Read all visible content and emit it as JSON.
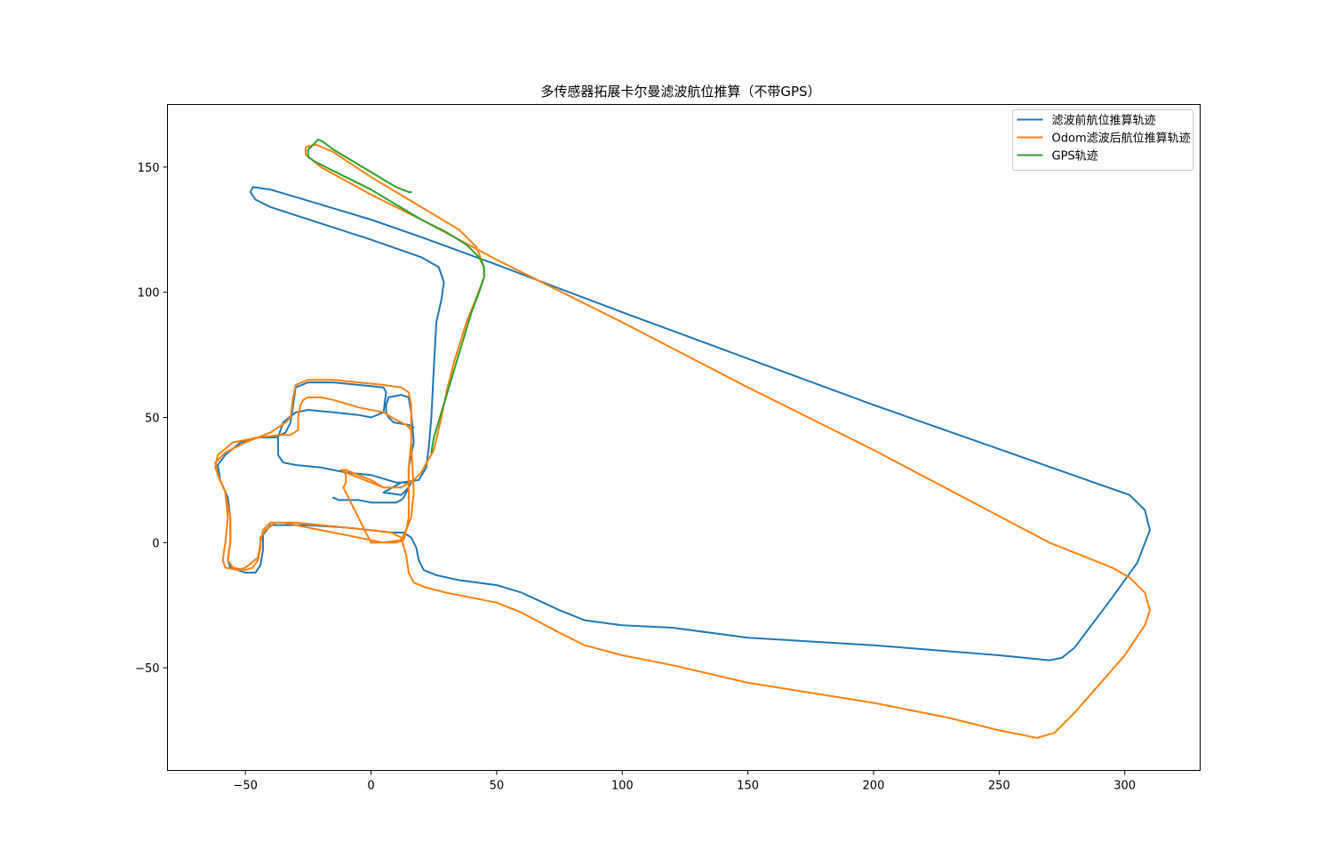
{
  "chart_data": {
    "type": "line",
    "title": "多传感器拓展卡尔曼滤波航位推算（不带GPS）",
    "xlabel": "",
    "ylabel": "",
    "xlim": [
      -81,
      330
    ],
    "ylim": [
      -91,
      175
    ],
    "xticks": [
      -50,
      0,
      50,
      100,
      150,
      200,
      250,
      300
    ],
    "xtick_labels": [
      "−50",
      "0",
      "50",
      "100",
      "150",
      "200",
      "250",
      "300"
    ],
    "yticks": [
      -50,
      0,
      50,
      100,
      150
    ],
    "ytick_labels": [
      "−50",
      "0",
      "50",
      "100",
      "150"
    ],
    "grid": false,
    "legend_position": "top-right",
    "series": [
      {
        "name": "滤波前航位推算轨迹",
        "color": "#1f77b4",
        "points": [
          [
            -15,
            18
          ],
          [
            -13,
            17
          ],
          [
            -10,
            17
          ],
          [
            -5,
            17
          ],
          [
            0,
            16
          ],
          [
            5,
            16
          ],
          [
            10,
            16
          ],
          [
            12,
            17
          ],
          [
            13,
            18
          ],
          [
            15,
            22
          ],
          [
            16,
            24
          ],
          [
            10,
            24
          ],
          [
            0,
            27
          ],
          [
            -10,
            28
          ],
          [
            -20,
            30
          ],
          [
            -30,
            31
          ],
          [
            -35,
            32
          ],
          [
            -37,
            35
          ],
          [
            -37,
            42
          ],
          [
            -35,
            48
          ],
          [
            -30,
            52
          ],
          [
            -25,
            53
          ],
          [
            -15,
            52
          ],
          [
            -5,
            51
          ],
          [
            0,
            50
          ],
          [
            5,
            52
          ],
          [
            6,
            60
          ],
          [
            5,
            62
          ],
          [
            -5,
            63
          ],
          [
            -15,
            64
          ],
          [
            -25,
            64
          ],
          [
            -30,
            62
          ],
          [
            -31,
            55
          ],
          [
            -32,
            48
          ],
          [
            -34,
            44
          ],
          [
            -38,
            42
          ],
          [
            -45,
            42
          ],
          [
            -52,
            40
          ],
          [
            -58,
            35
          ],
          [
            -61,
            31
          ],
          [
            -60,
            25
          ],
          [
            -57,
            18
          ],
          [
            -56,
            10
          ],
          [
            -56,
            0
          ],
          [
            -57,
            -7
          ],
          [
            -56,
            -10
          ],
          [
            -50,
            -12
          ],
          [
            -46,
            -12
          ],
          [
            -44,
            -9
          ],
          [
            -43,
            -3
          ],
          [
            -43,
            3
          ],
          [
            -40,
            7
          ],
          [
            -36,
            7
          ],
          [
            -25,
            7
          ],
          [
            -10,
            6
          ],
          [
            0,
            5
          ],
          [
            8,
            4
          ],
          [
            13,
            4
          ],
          [
            16,
            2
          ],
          [
            18,
            -2
          ],
          [
            19,
            -7
          ],
          [
            21,
            -11
          ],
          [
            26,
            -13
          ],
          [
            35,
            -15
          ],
          [
            50,
            -17
          ],
          [
            60,
            -20
          ],
          [
            75,
            -27
          ],
          [
            85,
            -31
          ],
          [
            100,
            -33
          ],
          [
            120,
            -34
          ],
          [
            150,
            -38
          ],
          [
            200,
            -41
          ],
          [
            250,
            -45
          ],
          [
            270,
            -47
          ],
          [
            275,
            -46
          ],
          [
            280,
            -42
          ],
          [
            295,
            -22
          ],
          [
            305,
            -8
          ],
          [
            310,
            5
          ],
          [
            308,
            13
          ],
          [
            302,
            19
          ],
          [
            285,
            25
          ],
          [
            200,
            55
          ],
          [
            100,
            92
          ],
          [
            50,
            111
          ],
          [
            20,
            122
          ],
          [
            0,
            129
          ],
          [
            -20,
            135
          ],
          [
            -40,
            141
          ],
          [
            -47,
            142
          ],
          [
            -48,
            140
          ],
          [
            -46,
            137
          ],
          [
            -40,
            134
          ],
          [
            0,
            121
          ],
          [
            20,
            114
          ],
          [
            27,
            110
          ],
          [
            29,
            104
          ],
          [
            28,
            97
          ],
          [
            26,
            88
          ],
          [
            25,
            70
          ],
          [
            24,
            50
          ],
          [
            23,
            38
          ],
          [
            22,
            30
          ],
          [
            19,
            25
          ],
          [
            12,
            24
          ],
          [
            5,
            20
          ],
          [
            12,
            19
          ],
          [
            15,
            22
          ],
          [
            15,
            30
          ],
          [
            17,
            40
          ],
          [
            16,
            52
          ],
          [
            15,
            58
          ],
          [
            12,
            59
          ],
          [
            7,
            58
          ],
          [
            6,
            55
          ],
          [
            6,
            52
          ],
          [
            7,
            50
          ],
          [
            9,
            48
          ],
          [
            15,
            47
          ],
          [
            17,
            46
          ]
        ]
      },
      {
        "name": "Odom滤波后航位推算轨迹",
        "color": "#ff7f0e",
        "points": [
          [
            -11,
            29
          ],
          [
            -10,
            27
          ],
          [
            -10,
            24
          ],
          [
            -11,
            22
          ],
          [
            0,
            0
          ],
          [
            5,
            0
          ],
          [
            10,
            0
          ],
          [
            13,
            1
          ],
          [
            14,
            5
          ],
          [
            15,
            10
          ],
          [
            15,
            20
          ],
          [
            15,
            30
          ],
          [
            16,
            40
          ],
          [
            16,
            45
          ],
          [
            14,
            47
          ],
          [
            10,
            49
          ],
          [
            5,
            52
          ],
          [
            -5,
            54
          ],
          [
            -15,
            57
          ],
          [
            -20,
            58
          ],
          [
            -25,
            58
          ],
          [
            -27,
            57
          ],
          [
            -28,
            55
          ],
          [
            -29,
            50
          ],
          [
            -29,
            45
          ],
          [
            -32,
            43
          ],
          [
            -36,
            43
          ],
          [
            -45,
            42
          ],
          [
            -55,
            40
          ],
          [
            -61,
            35
          ],
          [
            -62,
            30
          ],
          [
            -60,
            25
          ],
          [
            -58,
            20
          ],
          [
            -57,
            10
          ],
          [
            -58,
            0
          ],
          [
            -59,
            -7
          ],
          [
            -58,
            -10
          ],
          [
            -53,
            -11
          ],
          [
            -50,
            -10
          ],
          [
            -45,
            -6
          ],
          [
            -44,
            0
          ],
          [
            -43,
            5
          ],
          [
            -40,
            8
          ],
          [
            -35,
            8
          ],
          [
            -25,
            6
          ],
          [
            -15,
            4
          ],
          [
            -5,
            2
          ],
          [
            5,
            0
          ],
          [
            12,
            1
          ],
          [
            14,
            5
          ],
          [
            16,
            10
          ],
          [
            17,
            20
          ],
          [
            16,
            40
          ],
          [
            16,
            55
          ],
          [
            15,
            60
          ],
          [
            12,
            62
          ],
          [
            5,
            63
          ],
          [
            -5,
            64
          ],
          [
            -15,
            65
          ],
          [
            -25,
            65
          ],
          [
            -30,
            63
          ],
          [
            -31,
            58
          ],
          [
            -32,
            50
          ],
          [
            -34,
            48
          ],
          [
            -40,
            44
          ],
          [
            -50,
            40
          ],
          [
            -58,
            36
          ],
          [
            -62,
            32
          ],
          [
            -61,
            27
          ],
          [
            -58,
            20
          ],
          [
            -56,
            10
          ],
          [
            -56,
            0
          ],
          [
            -57,
            -7
          ],
          [
            -55,
            -10
          ],
          [
            -50,
            -11
          ],
          [
            -47,
            -10
          ],
          [
            -45,
            -7
          ],
          [
            -44,
            -2
          ],
          [
            -44,
            2
          ],
          [
            -42,
            5
          ],
          [
            -38,
            8
          ],
          [
            -30,
            8
          ],
          [
            -20,
            7
          ],
          [
            0,
            5
          ],
          [
            8,
            4
          ],
          [
            12,
            2
          ],
          [
            14,
            -5
          ],
          [
            15,
            -12
          ],
          [
            17,
            -16
          ],
          [
            22,
            -18
          ],
          [
            30,
            -20
          ],
          [
            40,
            -22
          ],
          [
            50,
            -24
          ],
          [
            60,
            -28
          ],
          [
            75,
            -36
          ],
          [
            85,
            -41
          ],
          [
            100,
            -45
          ],
          [
            120,
            -49
          ],
          [
            150,
            -56
          ],
          [
            200,
            -64
          ],
          [
            230,
            -70
          ],
          [
            250,
            -75
          ],
          [
            265,
            -78
          ],
          [
            272,
            -76
          ],
          [
            280,
            -68
          ],
          [
            300,
            -45
          ],
          [
            308,
            -33
          ],
          [
            310,
            -27
          ],
          [
            308,
            -20
          ],
          [
            302,
            -14
          ],
          [
            295,
            -10
          ],
          [
            270,
            0
          ],
          [
            200,
            37
          ],
          [
            150,
            62
          ],
          [
            100,
            88
          ],
          [
            50,
            113
          ],
          [
            20,
            129
          ],
          [
            0,
            139
          ],
          [
            -20,
            150
          ],
          [
            -26,
            155
          ],
          [
            -26,
            158
          ],
          [
            -22,
            159
          ],
          [
            -15,
            156
          ],
          [
            0,
            146
          ],
          [
            20,
            134
          ],
          [
            35,
            125
          ],
          [
            42,
            118
          ],
          [
            45,
            110
          ],
          [
            45,
            106
          ],
          [
            42,
            98
          ],
          [
            38,
            88
          ],
          [
            33,
            72
          ],
          [
            30,
            60
          ],
          [
            28,
            50
          ],
          [
            25,
            37
          ],
          [
            20,
            28
          ],
          [
            17,
            25
          ],
          [
            12,
            22
          ],
          [
            5,
            22
          ],
          [
            0,
            24
          ],
          [
            -5,
            26
          ],
          [
            -10,
            28
          ],
          [
            -12,
            29
          ],
          [
            -10,
            29
          ],
          [
            0,
            25
          ],
          [
            5,
            22
          ]
        ]
      },
      {
        "name": "GPS轨迹",
        "color": "#2ca02c",
        "points": [
          [
            16,
            140
          ],
          [
            15,
            140
          ],
          [
            10,
            142
          ],
          [
            5,
            145
          ],
          [
            0,
            148
          ],
          [
            -5,
            151
          ],
          [
            -10,
            154
          ],
          [
            -15,
            157
          ],
          [
            -19,
            160
          ],
          [
            -21,
            161
          ],
          [
            -23,
            159
          ],
          [
            -25,
            157
          ],
          [
            -25,
            154
          ],
          [
            -22,
            152
          ],
          [
            -18,
            150
          ],
          [
            -10,
            146
          ],
          [
            0,
            141
          ],
          [
            5,
            138
          ],
          [
            10,
            135
          ],
          [
            20,
            129
          ],
          [
            30,
            124
          ],
          [
            38,
            119
          ],
          [
            43,
            114
          ],
          [
            45,
            110
          ],
          [
            45,
            106
          ],
          [
            43,
            100
          ],
          [
            40,
            92
          ],
          [
            37,
            82
          ],
          [
            34,
            72
          ],
          [
            31,
            62
          ],
          [
            28,
            52
          ],
          [
            25,
            42
          ],
          [
            24,
            36
          ]
        ]
      }
    ]
  }
}
